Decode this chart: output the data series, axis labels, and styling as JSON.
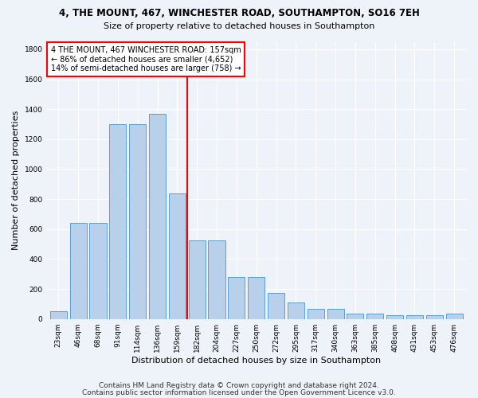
{
  "title": "4, THE MOUNT, 467, WINCHESTER ROAD, SOUTHAMPTON, SO16 7EH",
  "subtitle": "Size of property relative to detached houses in Southampton",
  "xlabel": "Distribution of detached houses by size in Southampton",
  "ylabel": "Number of detached properties",
  "categories": [
    "23sqm",
    "46sqm",
    "68sqm",
    "91sqm",
    "114sqm",
    "136sqm",
    "159sqm",
    "182sqm",
    "204sqm",
    "227sqm",
    "250sqm",
    "272sqm",
    "295sqm",
    "317sqm",
    "340sqm",
    "363sqm",
    "385sqm",
    "408sqm",
    "431sqm",
    "453sqm",
    "476sqm"
  ],
  "values": [
    50,
    640,
    640,
    1300,
    1300,
    1370,
    840,
    525,
    525,
    280,
    280,
    175,
    110,
    70,
    70,
    35,
    35,
    25,
    25,
    25,
    35
  ],
  "bar_color": "#b8d0ea",
  "bar_edge_color": "#5a9fd4",
  "bar_width": 0.85,
  "reference_line_x": 6.5,
  "reference_line_color": "red",
  "annotation_text": "4 THE MOUNT, 467 WINCHESTER ROAD: 157sqm\n← 86% of detached houses are smaller (4,652)\n14% of semi-detached houses are larger (758) →",
  "annotation_box_color": "white",
  "annotation_box_edge_color": "red",
  "ylim": [
    0,
    1850
  ],
  "yticks": [
    0,
    200,
    400,
    600,
    800,
    1000,
    1200,
    1400,
    1600,
    1800
  ],
  "footnote1": "Contains HM Land Registry data © Crown copyright and database right 2024.",
  "footnote2": "Contains public sector information licensed under the Open Government Licence v3.0.",
  "background_color": "#eef2f9",
  "grid_color": "#ffffff",
  "title_fontsize": 8.5,
  "subtitle_fontsize": 8,
  "ylabel_fontsize": 8,
  "xlabel_fontsize": 8,
  "tick_fontsize": 6.5,
  "annotation_fontsize": 7,
  "footnote_fontsize": 6.5
}
